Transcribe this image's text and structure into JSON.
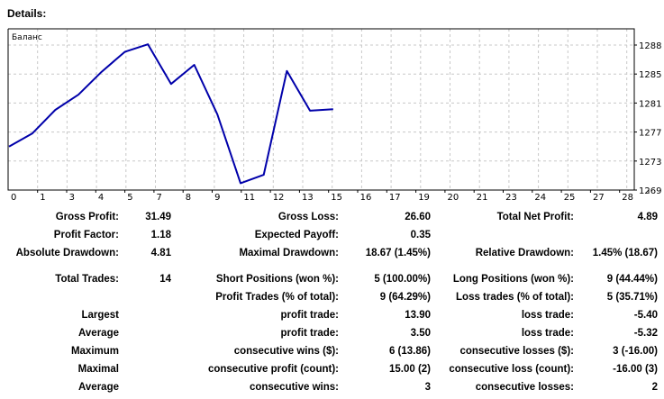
{
  "report": {
    "title": "Details:"
  },
  "chart_data": {
    "type": "line",
    "legend_label": "Баланс",
    "line_color": "#0000AA",
    "grid": true,
    "x_tick_labels": [
      "0",
      "1",
      "3",
      "4",
      "5",
      "7",
      "8",
      "9",
      "11",
      "12",
      "13",
      "15",
      "16",
      "17",
      "19",
      "20",
      "21",
      "23",
      "24",
      "25",
      "27",
      "28"
    ],
    "y_tick_labels": [
      "1288",
      "1285",
      "1281",
      "1277",
      "1273",
      "1269"
    ],
    "ylim": [
      1269,
      1288
    ],
    "series": [
      {
        "x": [
          0,
          1,
          2,
          3,
          4,
          5,
          6,
          7,
          8,
          9,
          10,
          11,
          12,
          13,
          14
        ],
        "y": [
          1274.7,
          1276.4,
          1279.5,
          1281.5,
          1284.5,
          1287.1,
          1288.1,
          1282.9,
          1285.4,
          1278.9,
          1269.9,
          1271.0,
          1284.6,
          1279.4,
          1279.6
        ]
      }
    ]
  },
  "stats": {
    "rows": [
      [
        "Gross Profit:",
        "31.49",
        "Gross Loss:",
        "26.60",
        "Total Net Profit:",
        "4.89"
      ],
      [
        "Profit Factor:",
        "1.18",
        "Expected Payoff:",
        "0.35",
        "",
        ""
      ],
      [
        "Absolute Drawdown:",
        "4.81",
        "Maximal Drawdown:",
        "18.67 (1.45%)",
        "Relative Drawdown:",
        "1.45% (18.67)"
      ],
      [
        "Total Trades:",
        "14",
        "Short Positions (won %):",
        "5 (100.00%)",
        "Long Positions (won %):",
        "9 (44.44%)"
      ],
      [
        "",
        "",
        "Profit Trades (% of total):",
        "9 (64.29%)",
        "Loss trades (% of total):",
        "5 (35.71%)"
      ],
      [
        "Largest",
        "",
        "profit trade:",
        "13.90",
        "loss trade:",
        "-5.40"
      ],
      [
        "Average",
        "",
        "profit trade:",
        "3.50",
        "loss trade:",
        "-5.32"
      ],
      [
        "Maximum",
        "",
        "consecutive wins ($):",
        "6 (13.86)",
        "consecutive losses ($):",
        "3 (-16.00)"
      ],
      [
        "Maximal",
        "",
        "consecutive profit (count):",
        "15.00 (2)",
        "consecutive loss (count):",
        "-16.00 (3)"
      ],
      [
        "Average",
        "",
        "consecutive wins:",
        "3",
        "consecutive losses:",
        "2"
      ]
    ]
  }
}
